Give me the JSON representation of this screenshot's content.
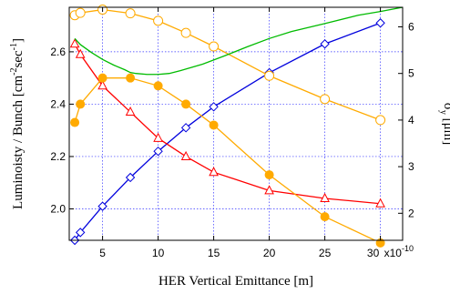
{
  "chart_data": {
    "type": "line",
    "xlabel": "HER Vertical Emittance [m]",
    "ylabel_left": "Luminoisty / Bunch [cm",
    "ylabel_left_sup1": "-2",
    "ylabel_left_mid": "sec",
    "ylabel_left_sup2": "-1",
    "ylabel_left_end": "]",
    "ylabel_right": "σ",
    "ylabel_right_sub": "y",
    "ylabel_right_unit": " [μm]",
    "x_multiplier": "x10",
    "x_multiplier_exp": "-10",
    "xlim": [
      2,
      32
    ],
    "ylim_left": [
      1.88,
      2.77
    ],
    "ylim_right": [
      1.42,
      6.42
    ],
    "xticks": [
      5,
      10,
      15,
      20,
      25,
      30
    ],
    "xtick_labels": [
      "5",
      "10",
      "15",
      "20",
      "25",
      "30"
    ],
    "yticks_left": [
      2.0,
      2.2,
      2.4,
      2.6
    ],
    "ytick_labels_left": [
      "2.0",
      "2.2",
      "2.4",
      "2.6"
    ],
    "yticks_right": [
      2,
      3,
      4,
      5,
      6
    ],
    "ytick_labels_right": [
      "2",
      "3",
      "4",
      "5",
      "6"
    ],
    "grid": true,
    "series": [
      {
        "axis": "left",
        "color": "#0000dd",
        "marker": "diamond",
        "x": [
          2.5,
          3,
          5,
          7.5,
          10,
          12.5,
          15,
          20,
          25,
          30
        ],
        "y": [
          1.88,
          1.91,
          2.01,
          2.12,
          2.22,
          2.31,
          2.39,
          2.52,
          2.63,
          2.71
        ]
      },
      {
        "axis": "left",
        "color": "#ff0000",
        "marker": "triangle",
        "x": [
          2.5,
          3,
          5,
          7.5,
          10,
          12.5,
          15,
          20,
          25,
          30
        ],
        "y": [
          2.63,
          2.59,
          2.47,
          2.37,
          2.27,
          2.2,
          2.14,
          2.07,
          2.04,
          2.02
        ]
      },
      {
        "axis": "left",
        "color": "#ffaa00",
        "marker": "circle-filled",
        "x": [
          2.5,
          3,
          5,
          7.5,
          10,
          12.5,
          15,
          20,
          25,
          30
        ],
        "y": [
          2.33,
          2.4,
          2.5,
          2.5,
          2.47,
          2.4,
          2.32,
          2.13,
          1.97,
          1.87
        ]
      },
      {
        "axis": "right",
        "color": "#ffaa00",
        "marker": "circle-open",
        "x": [
          2.5,
          3,
          5,
          7.5,
          10,
          12.5,
          15,
          20,
          25,
          30
        ],
        "y": [
          6.25,
          6.3,
          6.37,
          6.29,
          6.13,
          5.87,
          5.58,
          4.95,
          4.45,
          4.0
        ]
      },
      {
        "axis": "right",
        "color": "#00bb00",
        "marker": "none",
        "x": [
          2.5,
          3,
          4,
          5,
          6,
          7,
          7.5,
          8,
          9,
          10,
          11,
          12,
          14,
          16,
          18,
          20,
          22,
          25,
          28,
          30,
          32
        ],
        "y": [
          5.75,
          5.62,
          5.45,
          5.3,
          5.18,
          5.08,
          5.02,
          5.0,
          4.98,
          4.98,
          5.0,
          5.06,
          5.2,
          5.38,
          5.57,
          5.75,
          5.9,
          6.07,
          6.25,
          6.33,
          6.42
        ]
      }
    ]
  }
}
